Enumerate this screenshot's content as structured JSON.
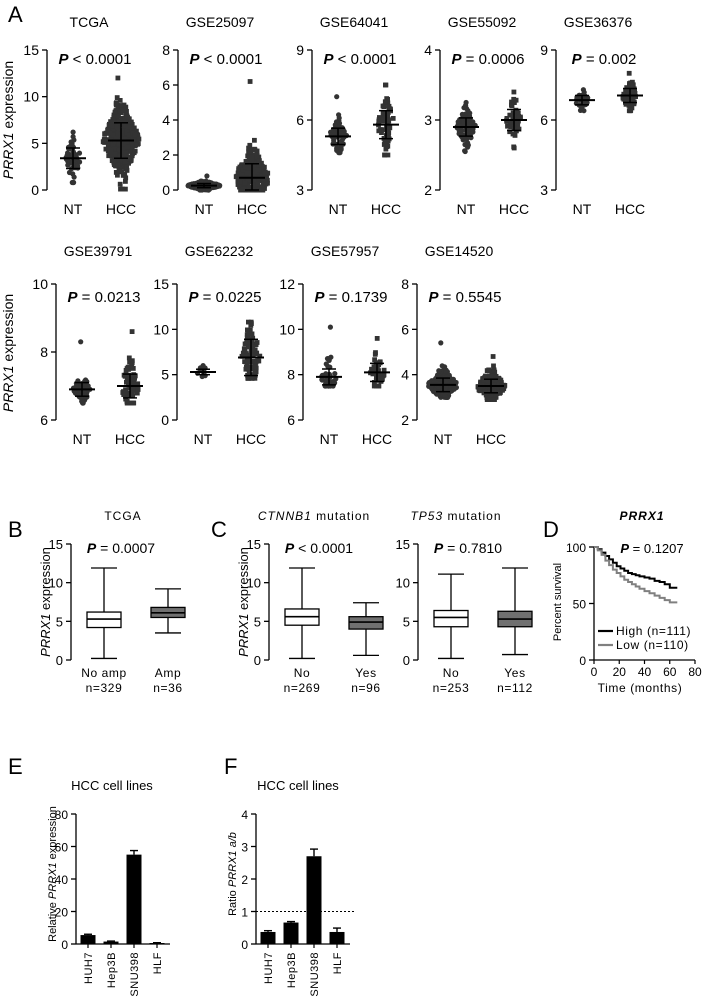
{
  "panel_letters": [
    "A",
    "B",
    "C",
    "D",
    "E",
    "F"
  ],
  "common": {
    "ylabel_gene": "PRRX1",
    "ylabel_suffix": " expression",
    "p_prefix": "P"
  },
  "chart_data": [
    {
      "id": "A-TCGA",
      "panel": "A",
      "type": "scatter",
      "title": "TCGA",
      "p_op": "<",
      "p_value": "0.0001",
      "ylabel": "PRRX1 expression",
      "ylim": [
        0,
        15
      ],
      "yticks": [
        0,
        5,
        10,
        15
      ],
      "categories": [
        "NT",
        "HCC"
      ],
      "groups": [
        {
          "name": "NT",
          "n": 50,
          "mean": 3.4,
          "sd": 1.1,
          "min": 0.8,
          "max": 6.2,
          "marker": "circle"
        },
        {
          "name": "HCC",
          "n": 370,
          "mean": 5.3,
          "sd": 1.9,
          "min": 0.1,
          "max": 12.0,
          "marker": "square"
        }
      ]
    },
    {
      "id": "A-GSE25097",
      "panel": "A",
      "type": "scatter",
      "title": "GSE25097",
      "p_op": "<",
      "p_value": "0.0001",
      "ylim": [
        0,
        8
      ],
      "yticks": [
        0,
        2,
        4,
        6,
        8
      ],
      "categories": [
        "NT",
        "HCC"
      ],
      "groups": [
        {
          "name": "NT",
          "n": 250,
          "mean": 0.25,
          "sd": 0.12,
          "min": 0.0,
          "max": 0.8,
          "marker": "circle"
        },
        {
          "name": "HCC",
          "n": 270,
          "mean": 0.7,
          "sd": 0.8,
          "min": 0.0,
          "max": 6.2,
          "marker": "square"
        }
      ]
    },
    {
      "id": "A-GSE64041",
      "panel": "A",
      "type": "scatter",
      "title": "GSE64041",
      "p_op": "<",
      "p_value": "0.0001",
      "ylim": [
        3,
        9
      ],
      "yticks": [
        3,
        6,
        9
      ],
      "categories": [
        "NT",
        "HCC"
      ],
      "groups": [
        {
          "name": "NT",
          "n": 65,
          "mean": 5.3,
          "sd": 0.35,
          "min": 4.6,
          "max": 7.0,
          "marker": "circle"
        },
        {
          "name": "HCC",
          "n": 60,
          "mean": 5.8,
          "sd": 0.6,
          "min": 4.5,
          "max": 7.5,
          "marker": "square"
        }
      ]
    },
    {
      "id": "A-GSE55092",
      "panel": "A",
      "type": "scatter",
      "title": "GSE55092",
      "p_op": "=",
      "p_value": "0.0006",
      "ylim": [
        2,
        4
      ],
      "yticks": [
        2,
        3,
        4
      ],
      "categories": [
        "NT",
        "HCC"
      ],
      "groups": [
        {
          "name": "NT",
          "n": 90,
          "mean": 2.9,
          "sd": 0.13,
          "min": 2.55,
          "max": 3.25,
          "marker": "circle"
        },
        {
          "name": "HCC",
          "n": 45,
          "mean": 3.0,
          "sd": 0.15,
          "min": 2.6,
          "max": 3.4,
          "marker": "square"
        }
      ]
    },
    {
      "id": "A-GSE36376",
      "panel": "A",
      "type": "scatter",
      "title": "GSE36376",
      "p_op": "=",
      "p_value": "0.002",
      "ylim": [
        3,
        9
      ],
      "yticks": [
        3,
        6,
        9
      ],
      "categories": [
        "NT",
        "HCC"
      ],
      "groups": [
        {
          "name": "NT",
          "n": 30,
          "mean": 6.85,
          "sd": 0.2,
          "min": 6.4,
          "max": 7.3,
          "marker": "circle"
        },
        {
          "name": "HCC",
          "n": 60,
          "mean": 7.05,
          "sd": 0.3,
          "min": 6.4,
          "max": 8.0,
          "marker": "square"
        }
      ]
    },
    {
      "id": "A-GSE39791",
      "panel": "A",
      "type": "scatter",
      "title": "GSE39791",
      "p_op": "=",
      "p_value": "0.0213",
      "ylim": [
        6,
        10
      ],
      "yticks": [
        6,
        8,
        10
      ],
      "categories": [
        "NT",
        "HCC"
      ],
      "groups": [
        {
          "name": "NT",
          "n": 72,
          "mean": 6.9,
          "sd": 0.2,
          "min": 6.5,
          "max": 8.3,
          "marker": "circle"
        },
        {
          "name": "HCC",
          "n": 72,
          "mean": 7.0,
          "sd": 0.35,
          "min": 6.5,
          "max": 8.6,
          "marker": "square"
        }
      ]
    },
    {
      "id": "A-GSE62232",
      "panel": "A",
      "type": "scatter",
      "title": "GSE62232",
      "p_op": "=",
      "p_value": "0.0225",
      "ylim": [
        0,
        15
      ],
      "yticks": [
        0,
        5,
        10,
        15
      ],
      "categories": [
        "NT",
        "HCC"
      ],
      "groups": [
        {
          "name": "NT",
          "n": 10,
          "mean": 5.3,
          "sd": 0.3,
          "min": 4.8,
          "max": 6.0,
          "marker": "circle"
        },
        {
          "name": "HCC",
          "n": 80,
          "mean": 6.9,
          "sd": 2.0,
          "min": 4.6,
          "max": 10.8,
          "marker": "square"
        }
      ]
    },
    {
      "id": "A-GSE57957",
      "panel": "A",
      "type": "scatter",
      "title": "GSE57957",
      "p_op": "=",
      "p_value": "0.1739",
      "ylim": [
        6,
        12
      ],
      "yticks": [
        6,
        8,
        10,
        12
      ],
      "categories": [
        "NT",
        "HCC"
      ],
      "groups": [
        {
          "name": "NT",
          "n": 40,
          "mean": 7.9,
          "sd": 0.35,
          "min": 7.5,
          "max": 10.1,
          "marker": "circle"
        },
        {
          "name": "HCC",
          "n": 40,
          "mean": 8.1,
          "sd": 0.4,
          "min": 7.5,
          "max": 9.6,
          "marker": "square"
        }
      ]
    },
    {
      "id": "A-GSE14520",
      "panel": "A",
      "type": "scatter",
      "title": "GSE14520",
      "p_op": "=",
      "p_value": "0.5545",
      "ylim": [
        2,
        8
      ],
      "yticks": [
        2,
        4,
        6,
        8
      ],
      "categories": [
        "NT",
        "HCC"
      ],
      "groups": [
        {
          "name": "NT",
          "n": 220,
          "mean": 3.55,
          "sd": 0.3,
          "min": 3.0,
          "max": 5.4,
          "marker": "circle"
        },
        {
          "name": "HCC",
          "n": 220,
          "mean": 3.5,
          "sd": 0.3,
          "min": 2.9,
          "max": 4.8,
          "marker": "square"
        }
      ]
    },
    {
      "id": "B",
      "panel": "B",
      "type": "box",
      "title": "TCGA",
      "p_op": "=",
      "p_value": "0.0007",
      "ylabel": "PRRX1 expression",
      "ylim": [
        0,
        15
      ],
      "yticks": [
        0,
        5,
        10,
        15
      ],
      "boxes": [
        {
          "label": "No amp",
          "n_label": "n=329",
          "min": 0.2,
          "q1": 4.2,
          "median": 5.3,
          "q3": 6.2,
          "max": 11.9,
          "fill": "#ffffff"
        },
        {
          "label": "Amp",
          "n_label": "n=36",
          "min": 3.5,
          "q1": 5.5,
          "median": 6.1,
          "q3": 6.8,
          "max": 9.2,
          "fill": "#707070"
        }
      ]
    },
    {
      "id": "C1",
      "panel": "C",
      "type": "box",
      "title_gene": "CTNNB1",
      "title_suffix": " mutation",
      "p_op": "<",
      "p_value": "0.0001",
      "ylabel": "PRRX1 expression",
      "ylim": [
        0,
        15
      ],
      "yticks": [
        0,
        5,
        10,
        15
      ],
      "boxes": [
        {
          "label": "No",
          "n_label": "n=269",
          "min": 0.2,
          "q1": 4.5,
          "median": 5.6,
          "q3": 6.6,
          "max": 11.9,
          "fill": "#ffffff"
        },
        {
          "label": "Yes",
          "n_label": "n=96",
          "min": 0.6,
          "q1": 4.0,
          "median": 4.9,
          "q3": 5.6,
          "max": 7.4,
          "fill": "#707070"
        }
      ]
    },
    {
      "id": "C2",
      "panel": "C",
      "type": "box",
      "title_gene": "TP53",
      "title_suffix": " mutation",
      "p_op": "=",
      "p_value": "0.7810",
      "ylim": [
        0,
        15
      ],
      "yticks": [
        0,
        5,
        10,
        15
      ],
      "boxes": [
        {
          "label": "No",
          "n_label": "n=253",
          "min": 0.2,
          "q1": 4.3,
          "median": 5.5,
          "q3": 6.4,
          "max": 11.1,
          "fill": "#ffffff"
        },
        {
          "label": "Yes",
          "n_label": "n=112",
          "min": 0.7,
          "q1": 4.3,
          "median": 5.3,
          "q3": 6.3,
          "max": 11.9,
          "fill": "#707070"
        }
      ]
    },
    {
      "id": "D",
      "panel": "D",
      "type": "line",
      "title": "PRRX1",
      "p_op": "=",
      "p_value": "0.1207",
      "xlabel": "Time (months)",
      "ylabel": "Percent survival",
      "xlim": [
        0,
        80
      ],
      "xticks": [
        0,
        20,
        40,
        60,
        80
      ],
      "ylim": [
        0,
        100
      ],
      "yticks": [
        0,
        50,
        100
      ],
      "series": [
        {
          "name": "High (n=111)",
          "color": "#000000",
          "x": [
            0,
            3,
            6,
            9,
            12,
            15,
            18,
            21,
            24,
            27,
            30,
            33,
            36,
            40,
            44,
            48,
            52,
            56,
            60,
            66
          ],
          "y": [
            100,
            98,
            95,
            92,
            89,
            86,
            83,
            81,
            79,
            77,
            76,
            75,
            74,
            73,
            72,
            70,
            69,
            67,
            64,
            64
          ]
        },
        {
          "name": "Low (n=110)",
          "color": "#808080",
          "x": [
            0,
            3,
            6,
            9,
            12,
            15,
            18,
            21,
            24,
            27,
            30,
            33,
            36,
            40,
            44,
            48,
            52,
            56,
            60,
            66
          ],
          "y": [
            100,
            97,
            93,
            88,
            84,
            80,
            77,
            74,
            71,
            69,
            67,
            65,
            63,
            61,
            59,
            57,
            55,
            53,
            51,
            51
          ]
        }
      ]
    },
    {
      "id": "E",
      "panel": "E",
      "type": "bar",
      "title": "HCC cell lines",
      "ylabel_prefix": "Relative ",
      "ylabel_gene": "PRRX1",
      "ylabel_suffix": " expression",
      "categories": [
        "HUH7",
        "Hep3B",
        "SNU398",
        "HLF"
      ],
      "values": [
        5.5,
        1.5,
        55.0,
        0.6
      ],
      "errors": [
        0.5,
        0.3,
        2.5,
        0.2
      ],
      "ylim": [
        0,
        80
      ],
      "yticks": [
        0,
        20,
        40,
        60,
        80
      ]
    },
    {
      "id": "F",
      "panel": "F",
      "type": "bar",
      "title": "HCC cell lines",
      "ylabel_prefix": "Ratio ",
      "ylabel_gene": "PRRX1 a/b",
      "ylabel_suffix": "",
      "categories": [
        "HUH7",
        "Hep3B",
        "SNU398",
        "HLF"
      ],
      "values": [
        0.37,
        0.66,
        2.7,
        0.37
      ],
      "errors": [
        0.04,
        0.03,
        0.22,
        0.12
      ],
      "reference_line": 1,
      "ylim": [
        0,
        4
      ],
      "yticks": [
        0,
        1,
        2,
        3,
        4
      ]
    }
  ]
}
